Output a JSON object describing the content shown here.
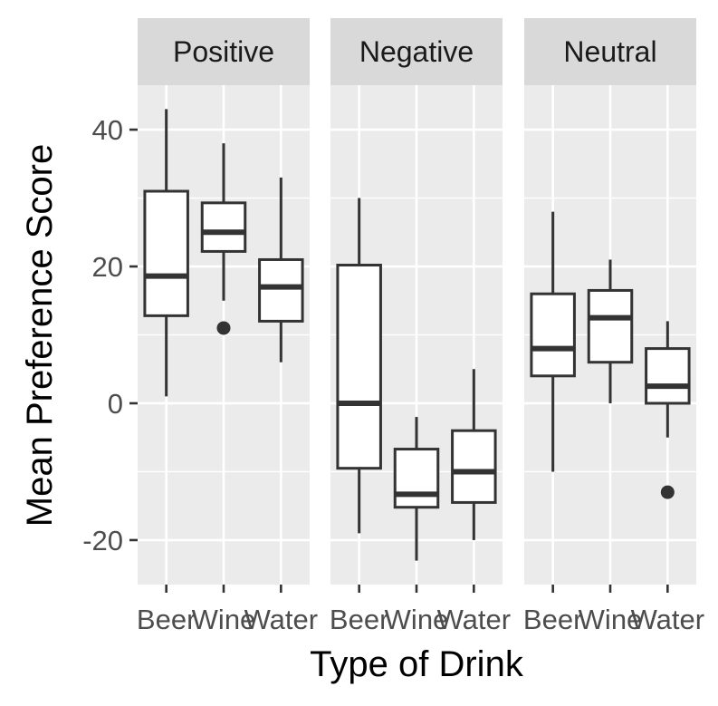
{
  "chart_data": {
    "type": "boxplot",
    "xlabel": "Type of Drink",
    "ylabel": "Mean Preference Score",
    "y_ticks": [
      -20,
      0,
      20,
      40
    ],
    "ylim": [
      -26.5,
      46.5
    ],
    "categories": [
      "Beer",
      "Wine",
      "Water"
    ],
    "facets": [
      {
        "label": "Positive",
        "boxes": [
          {
            "category": "Beer",
            "min": 1,
            "q1": 12.8,
            "median": 18.6,
            "q3": 31,
            "max": 43,
            "outliers": []
          },
          {
            "category": "Wine",
            "min": 15,
            "q1": 22.2,
            "median": 25,
            "q3": 29.3,
            "max": 38,
            "outliers": [
              11
            ]
          },
          {
            "category": "Water",
            "min": 6,
            "q1": 12,
            "median": 17,
            "q3": 21,
            "max": 33,
            "outliers": []
          }
        ]
      },
      {
        "label": "Negative",
        "boxes": [
          {
            "category": "Beer",
            "min": -19,
            "q1": -9.5,
            "median": 0,
            "q3": 20.2,
            "max": 30,
            "outliers": []
          },
          {
            "category": "Wine",
            "min": -23,
            "q1": -15.2,
            "median": -13.3,
            "q3": -6.7,
            "max": -2,
            "outliers": []
          },
          {
            "category": "Water",
            "min": -20,
            "q1": -14.5,
            "median": -10,
            "q3": -4,
            "max": 5,
            "outliers": []
          }
        ]
      },
      {
        "label": "Neutral",
        "boxes": [
          {
            "category": "Beer",
            "min": -10,
            "q1": 4,
            "median": 8,
            "q3": 16,
            "max": 28,
            "outliers": []
          },
          {
            "category": "Wine",
            "min": 0,
            "q1": 6,
            "median": 12.5,
            "q3": 16.5,
            "max": 21,
            "outliers": []
          },
          {
            "category": "Water",
            "min": -5,
            "q1": 0,
            "median": 2.5,
            "q3": 8,
            "max": 12,
            "outliers": [
              -13
            ]
          }
        ]
      }
    ],
    "grid": true,
    "legend": "none"
  }
}
